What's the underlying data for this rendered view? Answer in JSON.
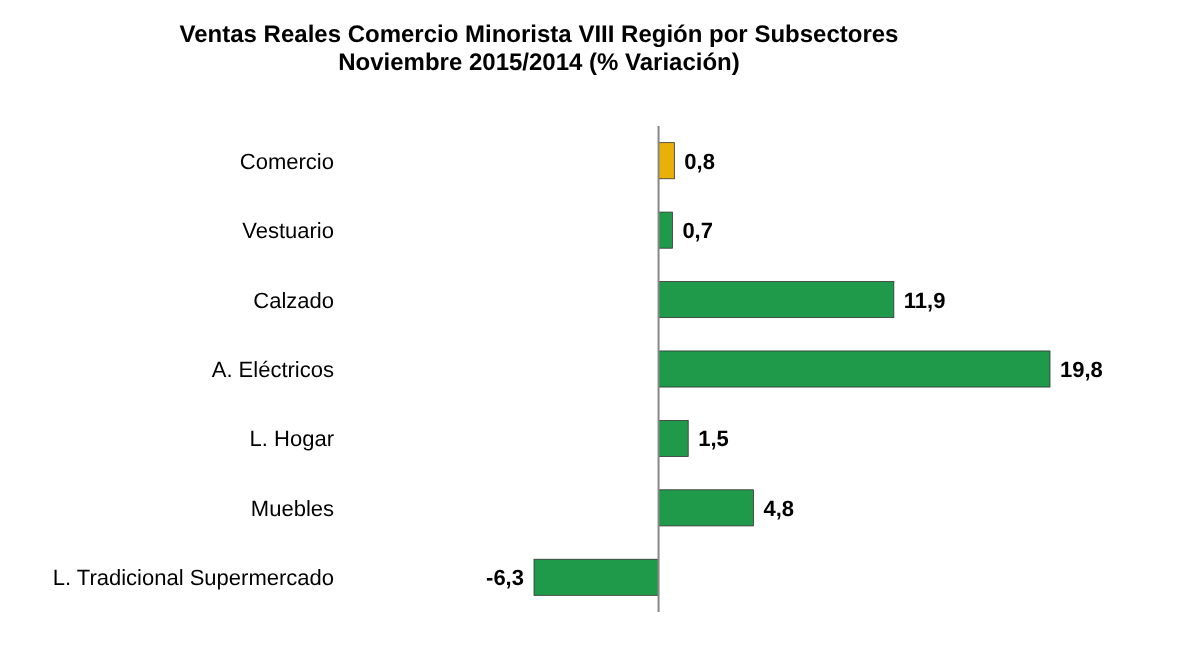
{
  "chart_data": {
    "type": "bar",
    "orientation": "horizontal",
    "title": "Ventas Reales Comercio Minorista VIII Región por Subsectores",
    "subtitle": "Noviembre  2015/2014 (% Variación)",
    "categories": [
      "Comercio",
      "Vestuario",
      "Calzado",
      "A. Eléctricos",
      "L. Hogar",
      "Muebles",
      "L. Tradicional Supermercado"
    ],
    "values": [
      0.8,
      0.7,
      11.9,
      19.8,
      1.5,
      4.8,
      -6.3
    ],
    "colors": [
      "#e8b10a",
      "#1f9a4a",
      "#1f9a4a",
      "#1f9a4a",
      "#1f9a4a",
      "#1f9a4a",
      "#1f9a4a"
    ],
    "value_labels": [
      "0,8",
      "0,7",
      "11,9",
      "19,8",
      "1,5",
      "4,8",
      "-6,3"
    ]
  }
}
